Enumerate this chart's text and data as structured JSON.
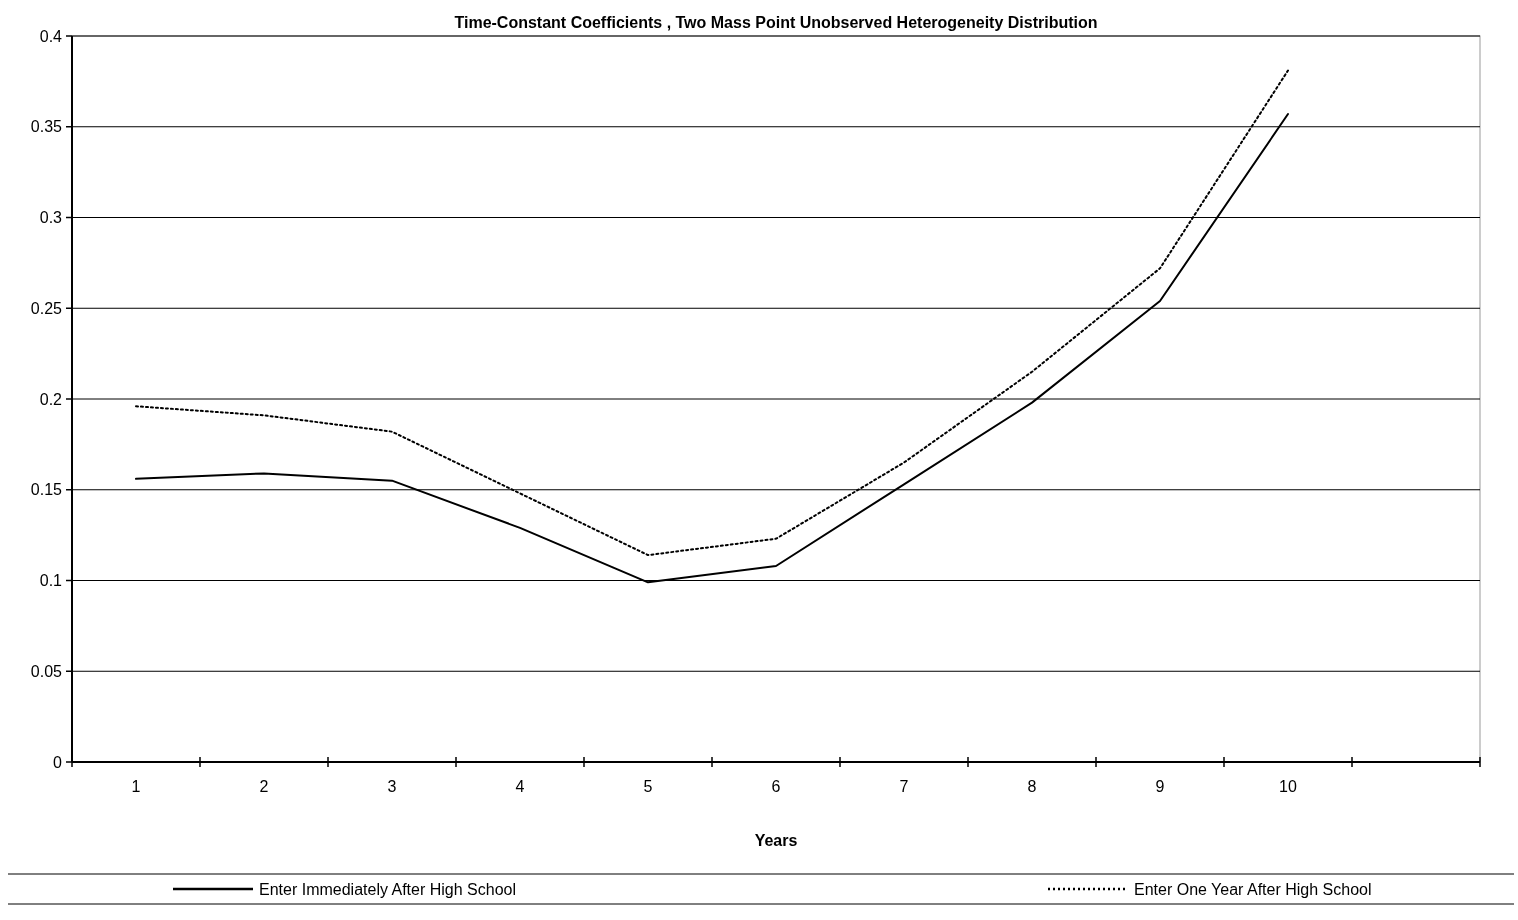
{
  "chart_data": {
    "type": "line",
    "title": "Time-Constant Coefficients , Two Mass Point Unobserved Heterogeneity Distribution",
    "xlabel": "Years",
    "categories": [
      "1",
      "2",
      "3",
      "4",
      "5",
      "6",
      "7",
      "8",
      "9",
      "10",
      null
    ],
    "series": [
      {
        "name": "Enter Immediately After High School",
        "color": "#000000",
        "line_style": "solid",
        "values": [
          0.156,
          0.159,
          0.155,
          0.129,
          0.099,
          0.108,
          0.153,
          0.198,
          0.254,
          0.357,
          null
        ]
      },
      {
        "name": "Enter One Year After High School",
        "color": "#000000",
        "line_style": "dotted",
        "values": [
          0.196,
          0.191,
          0.182,
          0.148,
          0.114,
          0.123,
          0.165,
          0.215,
          0.272,
          0.381,
          null
        ]
      }
    ],
    "ylim": [
      0,
      0.4
    ],
    "yticks": [
      0,
      0.05,
      0.1,
      0.15,
      0.2,
      0.25,
      0.3,
      0.35,
      0.4
    ],
    "grid": "y",
    "legend": "bottom",
    "marker": "none"
  }
}
